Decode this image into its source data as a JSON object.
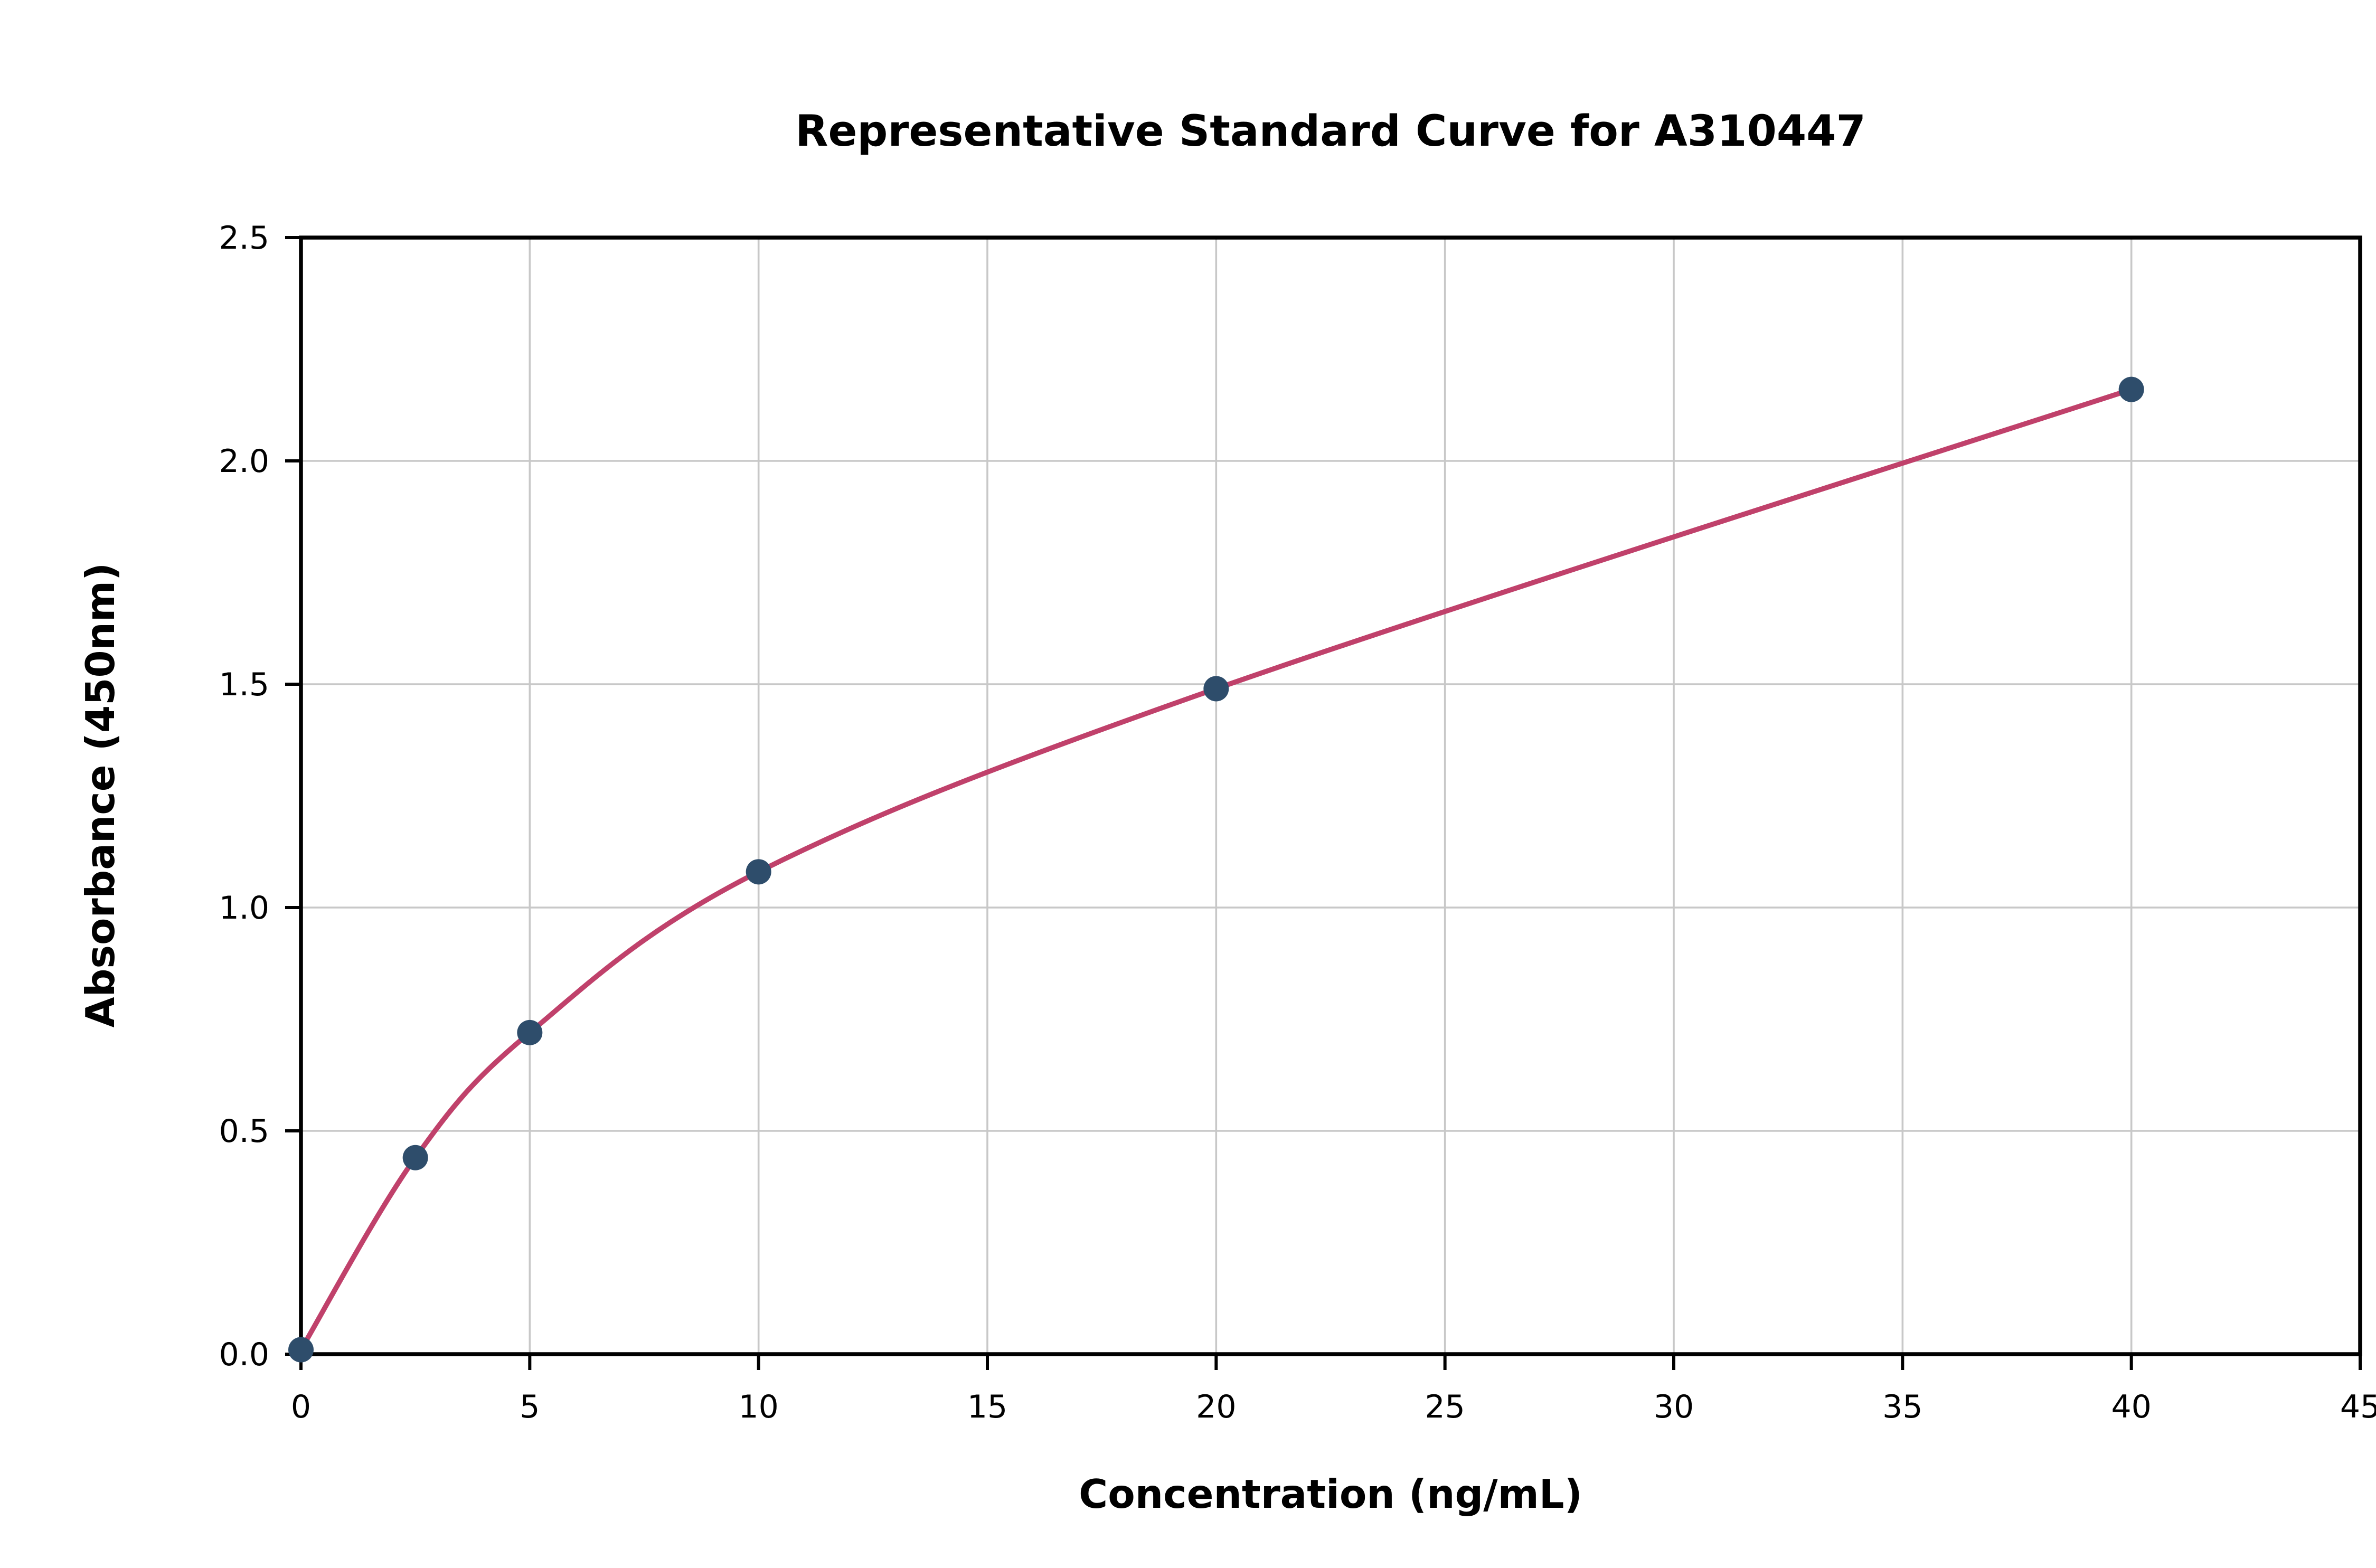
{
  "chart_data": {
    "type": "scatter",
    "title": "Representative Standard Curve for A310447",
    "xlabel": "Concentration (ng/mL)",
    "ylabel": "Absorbance (450nm)",
    "points": {
      "x": [
        0,
        2.5,
        5,
        10,
        20,
        40
      ],
      "y": [
        0.01,
        0.44,
        0.72,
        1.08,
        1.49,
        2.16
      ]
    },
    "fit_line": true,
    "xlim": [
      0,
      45
    ],
    "ylim": [
      0,
      2.5
    ],
    "xticks": {
      "values": [
        0,
        5,
        10,
        15,
        20,
        25,
        30,
        35,
        40,
        45
      ],
      "labels": [
        "0",
        "5",
        "10",
        "15",
        "20",
        "25",
        "30",
        "35",
        "40",
        "45"
      ]
    },
    "yticks": {
      "values": [
        0,
        0.5,
        1.0,
        1.5,
        2.0,
        2.5
      ],
      "labels": [
        "0.0",
        "0.5",
        "1.0",
        "1.5",
        "2.0",
        "2.5"
      ]
    },
    "grid": true,
    "legend": "none",
    "colors": {
      "curve": "#c0416b",
      "marker": "#2e4d6b",
      "grid": "#c8c8c8",
      "axis": "#000000",
      "background": "#ffffff"
    }
  }
}
